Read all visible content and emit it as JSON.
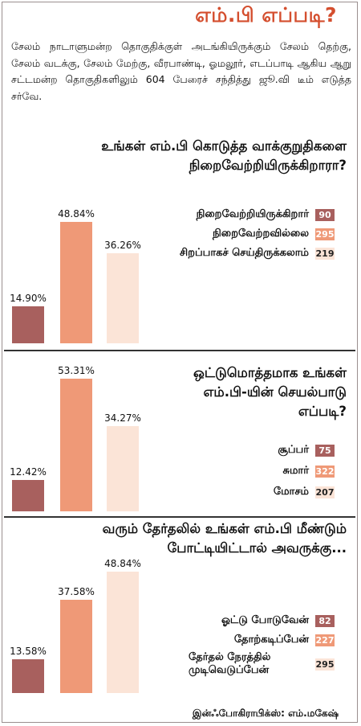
{
  "title": "எம்.பி எப்படி?",
  "intro": "சேலம் நாடாளுமன்ற தொகுதிக்குள் அடங்கியிருக்கும் சேலம் தெற்கு, சேலம் வடக்கு, சேலம் மேற்கு, வீரபாண்டி, ஓமலூர், எடப்பாடி ஆகிய ஆறு சட்டமன்ற தொகுதிகளிலும் 604 பேரைச் சந்தித்து ஜூ.வி டீம் எடுத்த சர்வே.",
  "colors": {
    "dark": "#a8605e",
    "medium": "#ef9977",
    "light": "#fbe4d7",
    "accent": "#d44e2e"
  },
  "chart_data": [
    {
      "type": "bar",
      "title": "உங்கள் எம்.பி கொடுத்த வாக்குறுதிகளை நிறைவேற்றியிருக்கிறாரா?",
      "categories": [
        "நிறைவேற்றியிருக்கிறார்",
        "நிறைவேற்றவில்லை",
        "சிறப்பாகச் செய்திருக்கலாம்"
      ],
      "values": [
        14.9,
        48.84,
        36.26
      ],
      "value_labels": [
        "14.90%",
        "48.84%",
        "36.26%"
      ],
      "counts": [
        "90",
        "295",
        "219"
      ],
      "colors": [
        "#a8605e",
        "#ef9977",
        "#fbe4d7"
      ],
      "legend": "top-right",
      "grid": false
    },
    {
      "type": "bar",
      "title": "ஒட்டுமொத்தமாக உங்கள் எம்.பி-யின் செயல்பாடு எப்படி?",
      "categories": [
        "சூப்பர்",
        "சுமார்",
        "மோசம்"
      ],
      "values": [
        12.42,
        53.31,
        34.27
      ],
      "value_labels": [
        "12.42%",
        "53.31%",
        "34.27%"
      ],
      "counts": [
        "75",
        "322",
        "207"
      ],
      "colors": [
        "#a8605e",
        "#ef9977",
        "#fbe4d7"
      ],
      "legend": "right",
      "grid": false
    },
    {
      "type": "bar",
      "title": "வரும் தேர்தலில் உங்கள் எம்.பி மீண்டும் போட்டியிட்டால் அவருக்கு...",
      "categories": [
        "ஓட்டு போடுவேன்",
        "தோற்கடிப்பேன்",
        "தேர்தல் நேரத்தில் முடிவெடுப்பேன்"
      ],
      "values": [
        13.58,
        37.58,
        48.84
      ],
      "value_labels": [
        "13.58%",
        "37.58%",
        "48.84%"
      ],
      "counts": [
        "82",
        "227",
        "295"
      ],
      "colors": [
        "#a8605e",
        "#ef9977",
        "#fbe4d7"
      ],
      "legend": "bottom-right",
      "grid": false
    }
  ],
  "credit": "இன்ஃபோகிராபிக்ஸ்: எம்.மகேஷ்"
}
